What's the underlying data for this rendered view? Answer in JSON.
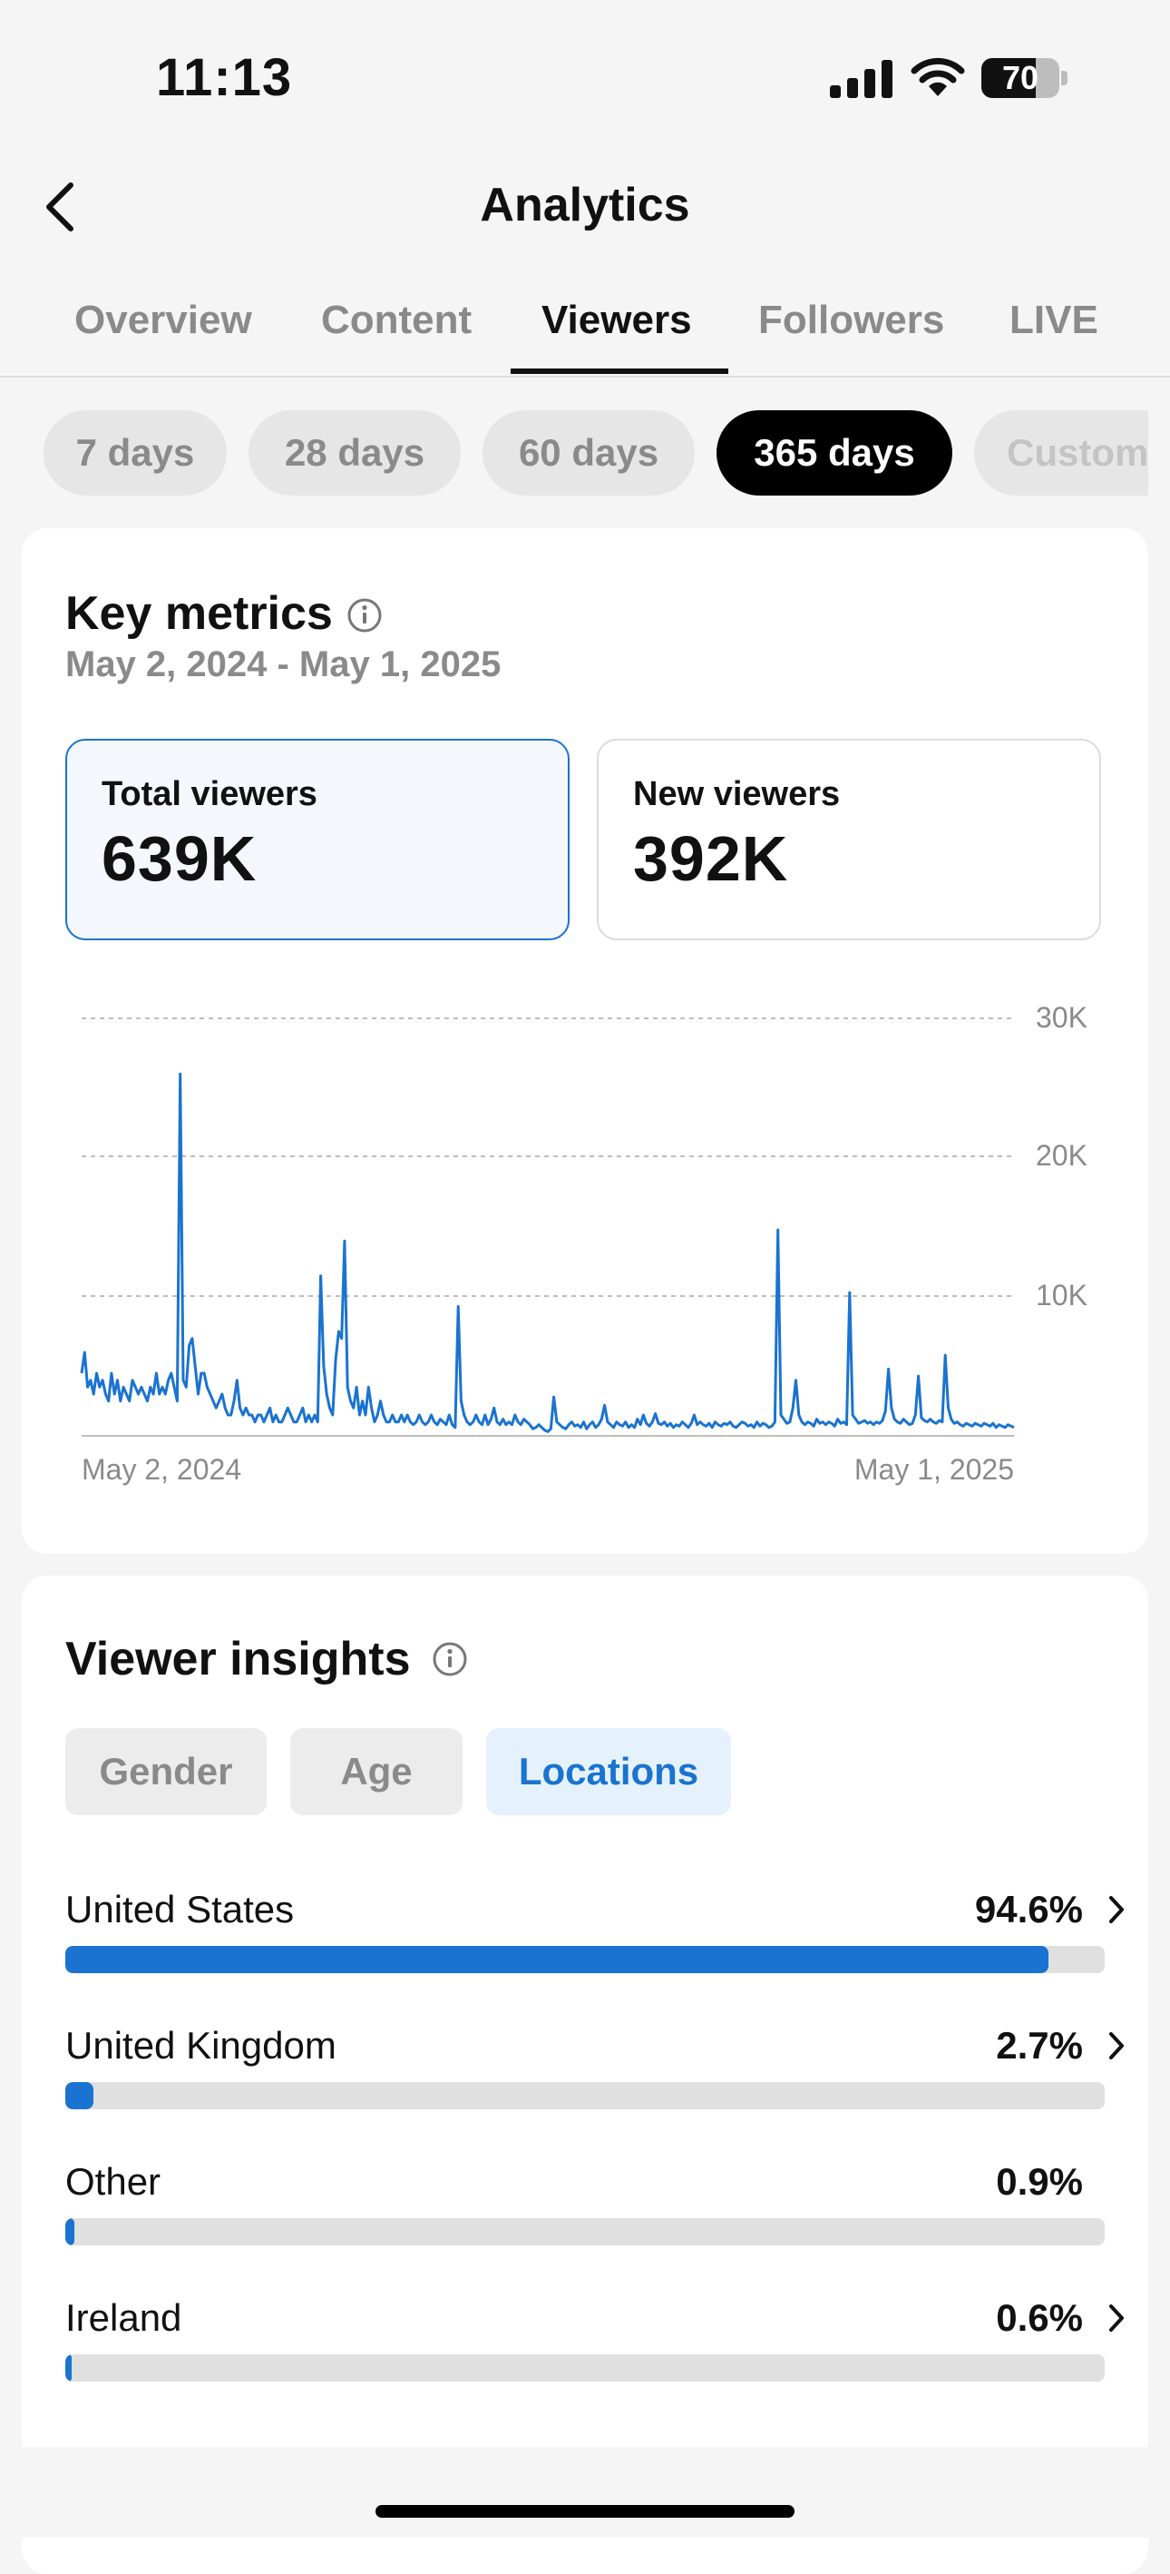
{
  "status_bar": {
    "time": "11:13",
    "battery": "70",
    "battery_level": 0.7
  },
  "header": {
    "title": "Analytics",
    "back_icon": "chevron-left-icon"
  },
  "tabs": [
    {
      "label": "Overview",
      "active": false
    },
    {
      "label": "Content",
      "active": false
    },
    {
      "label": "Viewers",
      "active": true
    },
    {
      "label": "Followers",
      "active": false
    },
    {
      "label": "LIVE",
      "active": false
    }
  ],
  "ranges": [
    {
      "label": "7 days",
      "active": false
    },
    {
      "label": "28 days",
      "active": false
    },
    {
      "label": "60 days",
      "active": false
    },
    {
      "label": "365 days",
      "active": true
    },
    {
      "label": "Custom",
      "active": false
    }
  ],
  "key_metrics": {
    "title": "Key metrics",
    "date_range": "May 2, 2024 - May 1, 2025",
    "total_viewers": {
      "label": "Total viewers",
      "value": "639K",
      "selected": true
    },
    "new_viewers": {
      "label": "New viewers",
      "value": "392K",
      "selected": false
    }
  },
  "chart_data": {
    "type": "line",
    "title": "",
    "xlabel": "",
    "ylabel": "",
    "x_start_label": "May 2, 2024",
    "x_end_label": "May 1, 2025",
    "yticks": [
      "10K",
      "20K",
      "30K"
    ],
    "ylim": [
      0,
      30000
    ],
    "grid": true,
    "color": "#1a73d0",
    "series": [
      {
        "values": [
          4500,
          6000,
          3500,
          4000,
          3000,
          4500,
          3500,
          4000,
          3000,
          2500,
          4500,
          3000,
          4000,
          2500,
          3500,
          3000,
          2500,
          4000,
          3500,
          3000,
          3500,
          3000,
          2500,
          3500,
          3000,
          4500,
          3000,
          3500,
          3000,
          4000,
          4500,
          3500,
          2500,
          26000,
          4000,
          3500,
          6500,
          7000,
          5000,
          3000,
          4500,
          4500,
          3500,
          3000,
          2500,
          2000,
          2500,
          3000,
          2000,
          1500,
          1500,
          2500,
          4000,
          2000,
          1500,
          2000,
          1500,
          1500,
          1000,
          1500,
          1500,
          1000,
          1500,
          2000,
          1000,
          1500,
          1000,
          1000,
          1500,
          2000,
          1500,
          1000,
          1000,
          1500,
          2000,
          1000,
          1500,
          1000,
          1500,
          1000,
          11500,
          5000,
          3000,
          2000,
          1500,
          5500,
          7500,
          7000,
          14000,
          3500,
          2500,
          2000,
          3500,
          1500,
          2500,
          1500,
          3500,
          2000,
          1000,
          1500,
          2500,
          1500,
          1000,
          1000,
          1500,
          1000,
          1000,
          1500,
          1000,
          1500,
          1000,
          800,
          1000,
          1500,
          1000,
          800,
          1000,
          1500,
          1000,
          800,
          1200,
          1000,
          800,
          1500,
          800,
          600,
          9300,
          2500,
          1500,
          1000,
          800,
          1000,
          1500,
          1000,
          800,
          1500,
          800,
          1200,
          2000,
          1000,
          800,
          1200,
          800,
          1000,
          800,
          1500,
          1000,
          800,
          1200,
          1000,
          800,
          500,
          600,
          800,
          600,
          400,
          300,
          500,
          2800,
          1000,
          800,
          600,
          500,
          800,
          1000,
          700,
          800,
          600,
          1000,
          500,
          800,
          1000,
          600,
          800,
          1200,
          2200,
          1000,
          800,
          600,
          1000,
          800,
          700,
          1000,
          600,
          800,
          600,
          1200,
          800,
          1500,
          900,
          700,
          1000,
          1600,
          900,
          800,
          1000,
          700,
          900,
          600,
          800,
          700,
          1000,
          800,
          600,
          900,
          1500,
          800,
          1000,
          800,
          700,
          900,
          600,
          1000,
          800,
          700,
          900,
          800,
          1000,
          700,
          600,
          800,
          1000,
          900,
          700,
          800,
          600,
          1000,
          700,
          900,
          800,
          600,
          700,
          1000,
          14800,
          1500,
          1200,
          900,
          1000,
          2000,
          4000,
          1500,
          1000,
          800,
          1000,
          900,
          700,
          1200,
          900,
          1000,
          800,
          1000,
          900,
          700,
          1200,
          900,
          1000,
          800,
          10300,
          1500,
          1200,
          900,
          1000,
          1100,
          900,
          1000,
          800,
          1000,
          900,
          1100,
          1800,
          4800,
          2000,
          1200,
          1000,
          900,
          1200,
          1000,
          800,
          900,
          1500,
          4300,
          1300,
          1100,
          1000,
          1200,
          1000,
          900,
          1100,
          1000,
          5800,
          2000,
          1200,
          900,
          1000,
          800,
          700,
          900,
          800,
          700,
          900,
          800,
          700,
          900,
          800,
          700,
          900,
          600,
          800,
          700,
          600,
          800,
          700,
          600
        ]
      }
    ]
  },
  "viewer_insights": {
    "title": "Viewer insights",
    "segments": [
      {
        "label": "Gender",
        "active": false
      },
      {
        "label": "Age",
        "active": false
      },
      {
        "label": "Locations",
        "active": true
      }
    ],
    "locations": [
      {
        "name": "United States",
        "pct": "94.6%",
        "value": 94.6,
        "chevron": true
      },
      {
        "name": "United Kingdom",
        "pct": "2.7%",
        "value": 2.7,
        "chevron": true
      },
      {
        "name": "Other",
        "pct": "0.9%",
        "value": 0.9,
        "chevron": false
      },
      {
        "name": "Ireland",
        "pct": "0.6%",
        "value": 0.6,
        "chevron": true
      }
    ]
  }
}
